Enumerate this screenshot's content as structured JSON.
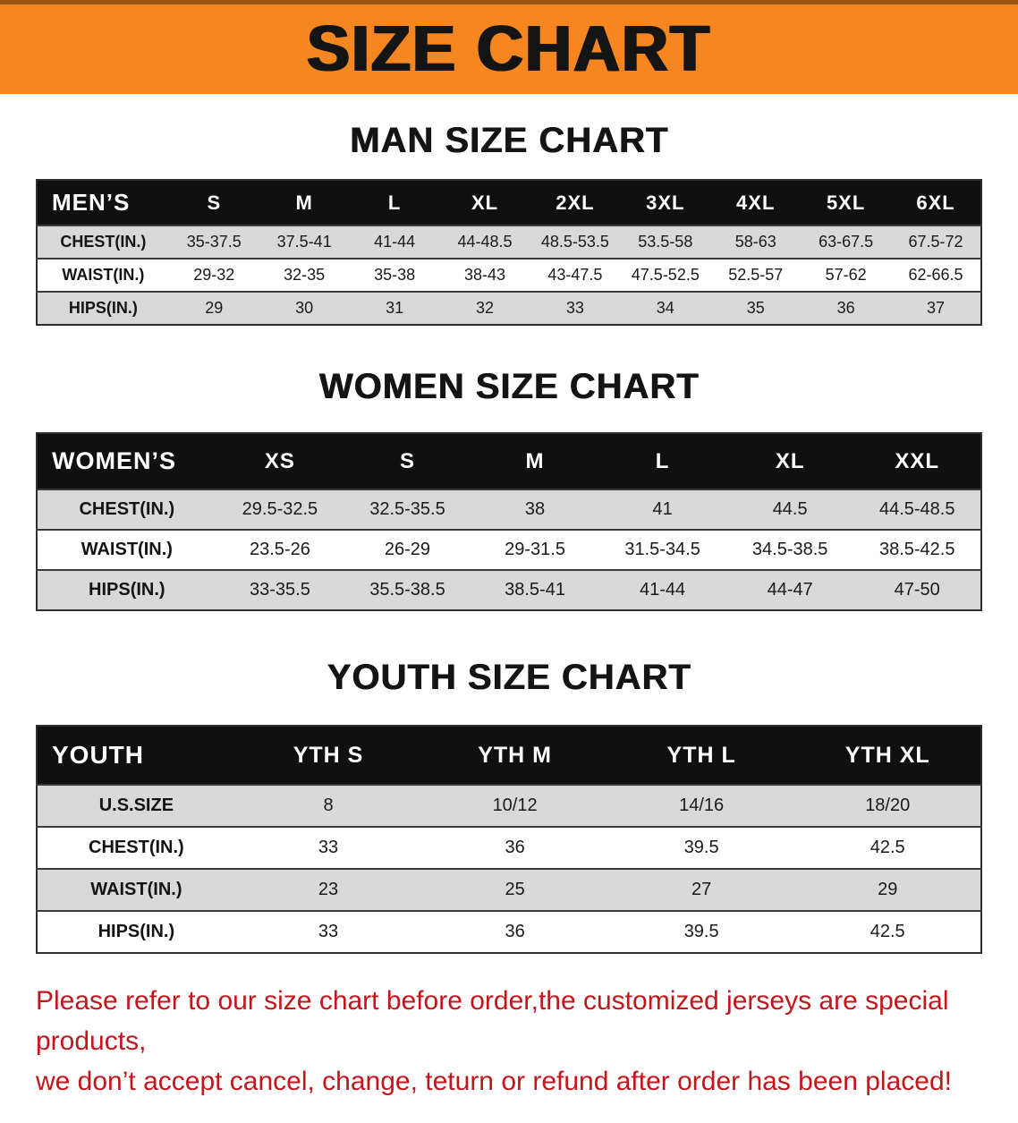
{
  "banner": {
    "title": "SIZE CHART"
  },
  "theme": {
    "banner_bg": "#f6861f",
    "table_header_bg": "#101010",
    "table_header_text": "#ffffff",
    "stripe": "#d9d9d9",
    "footer_text": "#c3161c"
  },
  "chart_data": [
    {
      "type": "table",
      "title": "MAN SIZE CHART",
      "corner": "MEN’S",
      "columns": [
        "S",
        "M",
        "L",
        "XL",
        "2XL",
        "3XL",
        "4XL",
        "5XL",
        "6XL"
      ],
      "rows": [
        {
          "label": "CHEST(IN.)",
          "values": [
            "35-37.5",
            "37.5-41",
            "41-44",
            "44-48.5",
            "48.5-53.5",
            "53.5-58",
            "58-63",
            "63-67.5",
            "67.5-72"
          ]
        },
        {
          "label": "WAIST(IN.)",
          "values": [
            "29-32",
            "32-35",
            "35-38",
            "38-43",
            "43-47.5",
            "47.5-52.5",
            "52.5-57",
            "57-62",
            "62-66.5"
          ]
        },
        {
          "label": "HIPS(IN.)",
          "values": [
            "29",
            "30",
            "31",
            "32",
            "33",
            "34",
            "35",
            "36",
            "37"
          ]
        }
      ]
    },
    {
      "type": "table",
      "title": "WOMEN SIZE CHART",
      "corner": "WOMEN’S",
      "columns": [
        "XS",
        "S",
        "M",
        "L",
        "XL",
        "XXL"
      ],
      "rows": [
        {
          "label": "CHEST(IN.)",
          "values": [
            "29.5-32.5",
            "32.5-35.5",
            "38",
            "41",
            "44.5",
            "44.5-48.5"
          ]
        },
        {
          "label": "WAIST(IN.)",
          "values": [
            "23.5-26",
            "26-29",
            "29-31.5",
            "31.5-34.5",
            "34.5-38.5",
            "38.5-42.5"
          ]
        },
        {
          "label": "HIPS(IN.)",
          "values": [
            "33-35.5",
            "35.5-38.5",
            "38.5-41",
            "41-44",
            "44-47",
            "47-50"
          ]
        }
      ]
    },
    {
      "type": "table",
      "title": "YOUTH SIZE CHART",
      "corner": "YOUTH",
      "columns": [
        "YTH S",
        "YTH M",
        "YTH L",
        "YTH XL"
      ],
      "rows": [
        {
          "label": "U.S.SIZE",
          "values": [
            "8",
            "10/12",
            "14/16",
            "18/20"
          ]
        },
        {
          "label": "CHEST(IN.)",
          "values": [
            "33",
            "36",
            "39.5",
            "42.5"
          ]
        },
        {
          "label": "WAIST(IN.)",
          "values": [
            "23",
            "25",
            "27",
            "29"
          ]
        },
        {
          "label": "HIPS(IN.)",
          "values": [
            "33",
            "36",
            "39.5",
            "42.5"
          ]
        }
      ]
    }
  ],
  "footer": {
    "line1": "Please refer to our size chart before order,the customized jerseys are special products,",
    "line2": "we don’t accept cancel, change, teturn or refund after order has been placed!"
  }
}
